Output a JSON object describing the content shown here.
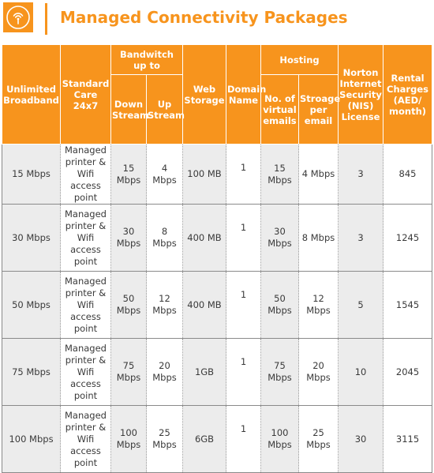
{
  "header": {
    "title": "Managed Connectivity Packages",
    "icon": "wifi-signal-icon",
    "accent": "#f7941d"
  },
  "columns": {
    "broadband": "Unlimited Broadband",
    "care": "Standard Care 24x7",
    "bandwidth": "Bandwitch up to",
    "down": "Down Stream",
    "up": "Up Stream",
    "web": "Web Storage",
    "domain": "Domain Name",
    "hosting": "Hosting",
    "emails": "No. of virtual emails",
    "storage_per_email": "Stroage per email",
    "nis": "Norton Internet Security (NIS) License",
    "rental": "Rental Charges (AED/ month)"
  },
  "rows": [
    {
      "broadband": "15 Mbps",
      "care": "Managed printer & Wifi access point",
      "down": "15 Mbps",
      "up": "4 Mbps",
      "web": "100 MB",
      "domain": "1",
      "emails": "15 Mbps",
      "storage": "4 Mbps",
      "nis": "3",
      "rental": "845"
    },
    {
      "broadband": "30 Mbps",
      "care": "Managed printer & Wifi access point",
      "down": "30 Mbps",
      "up": "8 Mbps",
      "web": "400 MB",
      "domain": "1",
      "emails": "30 Mbps",
      "storage": "8 Mbps",
      "nis": "3",
      "rental": "1245"
    },
    {
      "broadband": "50 Mbps",
      "care": "Managed printer & Wifi access point",
      "down": "50 Mbps",
      "up": "12 Mbps",
      "web": "400 MB",
      "domain": "1",
      "emails": "50 Mbps",
      "storage": "12 Mbps",
      "nis": "5",
      "rental": "1545"
    },
    {
      "broadband": "75 Mbps",
      "care": "Managed printer & Wifi access point",
      "down": "75 Mbps",
      "up": "20 Mbps",
      "web": "1GB",
      "domain": "1",
      "emails": "75 Mbps",
      "storage": "20 Mbps",
      "nis": "10",
      "rental": "2045"
    },
    {
      "broadband": "100 Mbps",
      "care": "Managed printer & Wifi access point",
      "down": "100 Mbps",
      "up": "25 Mbps",
      "web": "6GB",
      "domain": "1",
      "emails": "100 Mbps",
      "storage": "25 Mbps",
      "nis": "30",
      "rental": "3115"
    }
  ]
}
